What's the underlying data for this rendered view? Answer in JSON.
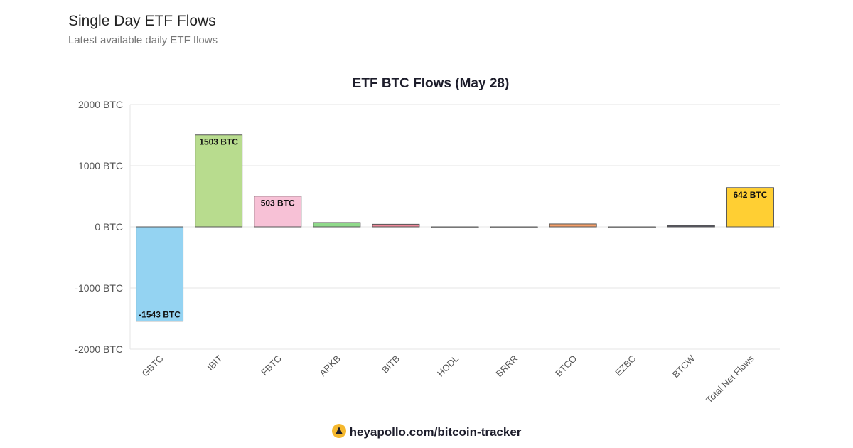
{
  "header": {
    "title": "Single Day ETF Flows",
    "subtitle": "Latest available daily ETF flows"
  },
  "footer": {
    "link": "heyapollo.com/bitcoin-tracker"
  },
  "chart_data": {
    "type": "bar",
    "title": "ETF BTC Flows (May 28)",
    "categories": [
      "GBTC",
      "IBIT",
      "FBTC",
      "ARKB",
      "BITB",
      "HODL",
      "BRRR",
      "BTCO",
      "EZBC",
      "BTCW",
      "Total Net Flows"
    ],
    "values": [
      -1543,
      1503,
      503,
      70,
      42,
      0,
      0,
      47,
      0,
      20,
      642
    ],
    "data_labels": [
      "-1543 BTC",
      "1503 BTC",
      "503 BTC",
      "",
      "",
      "",
      "",
      "",
      "",
      "",
      "642 BTC"
    ],
    "colors": [
      "#94d3f2",
      "#b8dc8e",
      "#f7c1d6",
      "#8fd98a",
      "#f08a9c",
      "#999999",
      "#999999",
      "#f6a06a",
      "#999999",
      "#555566",
      "#ffcf33"
    ],
    "ylim": [
      -2000,
      2000
    ],
    "yticks": [
      "-2000 BTC",
      "-1000 BTC",
      "0 BTC",
      "1000 BTC",
      "2000 BTC"
    ],
    "ytick_values": [
      -2000,
      -1000,
      0,
      1000,
      2000
    ],
    "grid": true,
    "xlabel": "",
    "ylabel": ""
  }
}
